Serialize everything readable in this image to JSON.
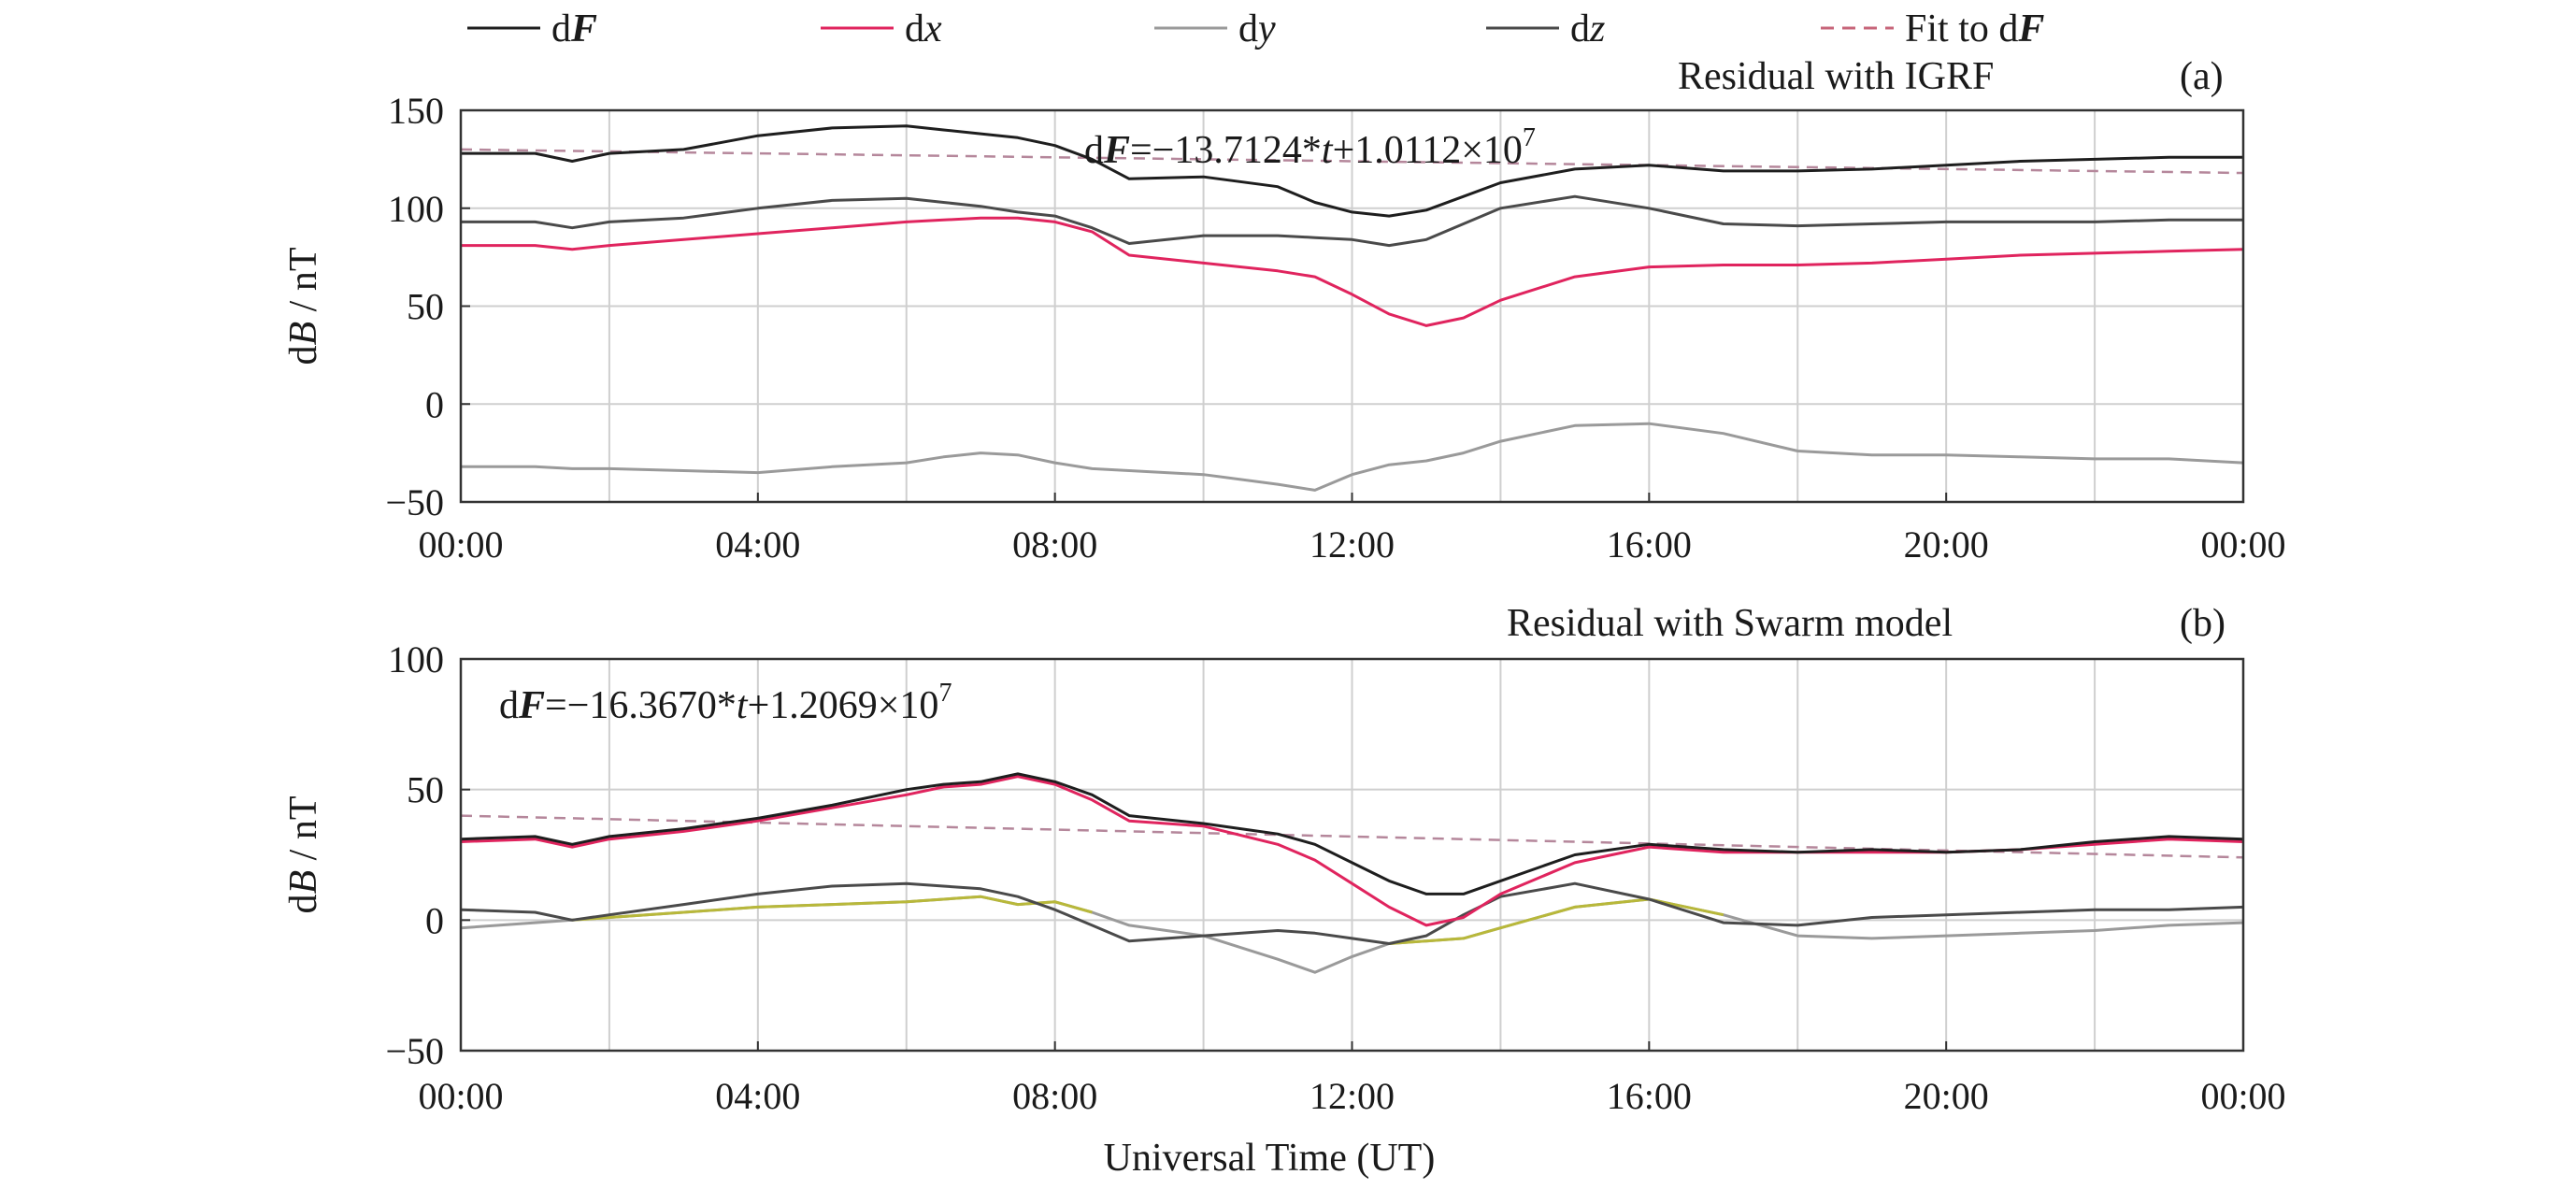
{
  "legend": {
    "items": [
      {
        "pre": "d",
        "main": "F",
        "style": "bi",
        "color": "#1e1e1e",
        "dash": false
      },
      {
        "pre": "d",
        "main": "x",
        "style": "i",
        "color": "#e0245e",
        "dash": false
      },
      {
        "pre": "d",
        "main": "y",
        "style": "i",
        "color": "#9a9a9a",
        "dash": false
      },
      {
        "pre": "d",
        "main": "z",
        "style": "i",
        "color": "#4a4a4a",
        "dash": false
      },
      {
        "pre": "Fit to d",
        "main": "F",
        "style": "bi",
        "color": "#c7657a",
        "dash": true
      }
    ]
  },
  "xlabel": "Universal Time (UT)",
  "x_ticks": [
    "00:00",
    "04:00",
    "08:00",
    "12:00",
    "16:00",
    "20:00",
    "00:00"
  ],
  "colors": {
    "dF": "#1e1e1e",
    "dx": "#e0245e",
    "dy": "#9a9a9a",
    "dz": "#4a4a4a",
    "fit": "#b5879b",
    "dy_highlight": "#b8b83a",
    "grid": "#cfcfcf"
  },
  "chart_data": [
    {
      "type": "line",
      "title": "Residual with IGRF",
      "panel_label": "(a)",
      "ylabel": "dB / nT",
      "ylim": [
        -50,
        150
      ],
      "y_ticks": [
        "150",
        "100",
        "50",
        "0",
        "−50"
      ],
      "y_tick_values": [
        150,
        100,
        50,
        0,
        -50
      ],
      "xlim_hours": [
        0,
        24
      ],
      "equation": {
        "lhs": "d",
        "lhs_var": "F",
        "eq": "=−13.7124*",
        "t": "t",
        "mid": "+1.0112×10",
        "exp": "7"
      },
      "x_hours": [
        0,
        1,
        1.5,
        2,
        3,
        4,
        5,
        6,
        6.5,
        7,
        7.5,
        8,
        8.5,
        9,
        10,
        11,
        11.5,
        12,
        12.5,
        13,
        13.5,
        14,
        15,
        16,
        17,
        18,
        19,
        20,
        21,
        22,
        23,
        24
      ],
      "series": [
        {
          "name": "dF",
          "key": "dF",
          "values": [
            128,
            128,
            124,
            128,
            130,
            137,
            141,
            142,
            140,
            138,
            136,
            132,
            125,
            115,
            116,
            111,
            103,
            98,
            96,
            99,
            106,
            113,
            120,
            122,
            119,
            119,
            120,
            122,
            124,
            125,
            126,
            126
          ]
        },
        {
          "name": "dx",
          "key": "dx",
          "values": [
            81,
            81,
            79,
            81,
            84,
            87,
            90,
            93,
            94,
            95,
            95,
            93,
            88,
            76,
            72,
            68,
            65,
            56,
            46,
            40,
            44,
            53,
            65,
            70,
            71,
            71,
            72,
            74,
            76,
            77,
            78,
            79
          ]
        },
        {
          "name": "dy",
          "key": "dy",
          "values": [
            -32,
            -32,
            -33,
            -33,
            -34,
            -35,
            -32,
            -30,
            -27,
            -25,
            -26,
            -30,
            -33,
            -34,
            -36,
            -41,
            -44,
            -36,
            -31,
            -29,
            -25,
            -19,
            -11,
            -10,
            -15,
            -24,
            -26,
            -26,
            -27,
            -28,
            -28,
            -30
          ]
        },
        {
          "name": "dz",
          "key": "dz",
          "values": [
            93,
            93,
            90,
            93,
            95,
            100,
            104,
            105,
            103,
            101,
            98,
            96,
            90,
            82,
            86,
            86,
            85,
            84,
            81,
            84,
            92,
            100,
            106,
            100,
            92,
            91,
            92,
            93,
            93,
            93,
            94,
            94
          ]
        }
      ],
      "fit": {
        "values": [
          130,
          118
        ]
      }
    },
    {
      "type": "line",
      "title": "Residual with Swarm model",
      "panel_label": "(b)",
      "ylabel": "dB / nT",
      "ylim": [
        -50,
        100
      ],
      "y_ticks": [
        "100",
        "50",
        "0",
        "−50"
      ],
      "y_tick_values": [
        100,
        50,
        0,
        -50
      ],
      "xlim_hours": [
        0,
        24
      ],
      "equation": {
        "lhs": "d",
        "lhs_var": "F",
        "eq": "=−16.3670*",
        "t": "t",
        "mid": "+1.2069×10",
        "exp": "7"
      },
      "x_hours": [
        0,
        1,
        1.5,
        2,
        3,
        4,
        5,
        6,
        6.5,
        7,
        7.5,
        8,
        8.5,
        9,
        10,
        11,
        11.5,
        12,
        12.5,
        13,
        13.5,
        14,
        15,
        16,
        17,
        18,
        19,
        20,
        21,
        22,
        23,
        24
      ],
      "series": [
        {
          "name": "dF",
          "key": "dF",
          "values": [
            31,
            32,
            29,
            32,
            35,
            39,
            44,
            50,
            52,
            53,
            56,
            53,
            48,
            40,
            37,
            33,
            29,
            22,
            15,
            10,
            10,
            15,
            25,
            29,
            27,
            26,
            27,
            26,
            27,
            30,
            32,
            31
          ]
        },
        {
          "name": "dx",
          "key": "dx",
          "values": [
            30,
            31,
            28,
            31,
            34,
            38,
            43,
            48,
            51,
            52,
            55,
            52,
            46,
            38,
            36,
            29,
            23,
            14,
            5,
            -2,
            1,
            10,
            22,
            28,
            26,
            26,
            26,
            26,
            27,
            29,
            31,
            30
          ]
        },
        {
          "name": "dy",
          "key": "dy",
          "values": [
            -3,
            -1,
            0,
            1,
            3,
            5,
            6,
            7,
            8,
            9,
            6,
            7,
            3,
            -2,
            -6,
            -15,
            -20,
            -14,
            -9,
            -8,
            -7,
            -3,
            5,
            8,
            2,
            -6,
            -7,
            -6,
            -5,
            -4,
            -2,
            -1
          ]
        },
        {
          "name": "dz",
          "key": "dz",
          "values": [
            4,
            3,
            0,
            2,
            6,
            10,
            13,
            14,
            13,
            12,
            9,
            4,
            -2,
            -8,
            -6,
            -4,
            -5,
            -7,
            -9,
            -6,
            2,
            9,
            14,
            8,
            -1,
            -2,
            1,
            2,
            3,
            4,
            4,
            5
          ]
        }
      ],
      "fit": {
        "values": [
          40,
          24
        ]
      }
    }
  ]
}
